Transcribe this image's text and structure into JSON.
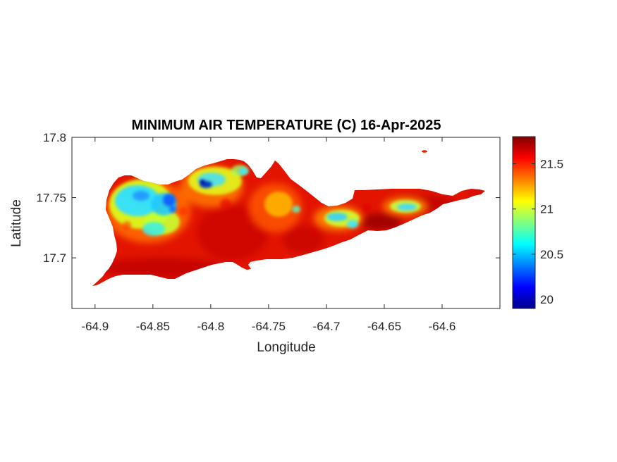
{
  "chart_data": {
    "type": "heatmap",
    "title": "MINIMUM AIR TEMPERATURE (C) 16-Apr-2025",
    "xlabel": "Longitude",
    "ylabel": "Latitude",
    "xlim": [
      -64.92,
      -64.55
    ],
    "ylim": [
      17.658,
      17.8
    ],
    "x_ticks": [
      -64.9,
      -64.85,
      -64.8,
      -64.75,
      -64.7,
      -64.65,
      -64.6
    ],
    "x_tick_labels": [
      "-64.9",
      "-64.85",
      "-64.8",
      "-64.75",
      "-64.7",
      "-64.65",
      "-64.6"
    ],
    "y_ticks": [
      17.7,
      17.75,
      17.8
    ],
    "y_tick_labels": [
      "17.7",
      "17.75",
      "17.8"
    ],
    "colorbar": {
      "colormap": "jet",
      "clim": [
        19.9,
        21.8
      ],
      "ticks": [
        20,
        20.5,
        21,
        21.5
      ],
      "tick_labels": [
        "20",
        "20.5",
        "21",
        "21.5"
      ]
    },
    "grid": false,
    "colors": {
      "land_base": "#e21400",
      "ocean_background": "#ffffff",
      "axis_color": "#262626"
    }
  }
}
